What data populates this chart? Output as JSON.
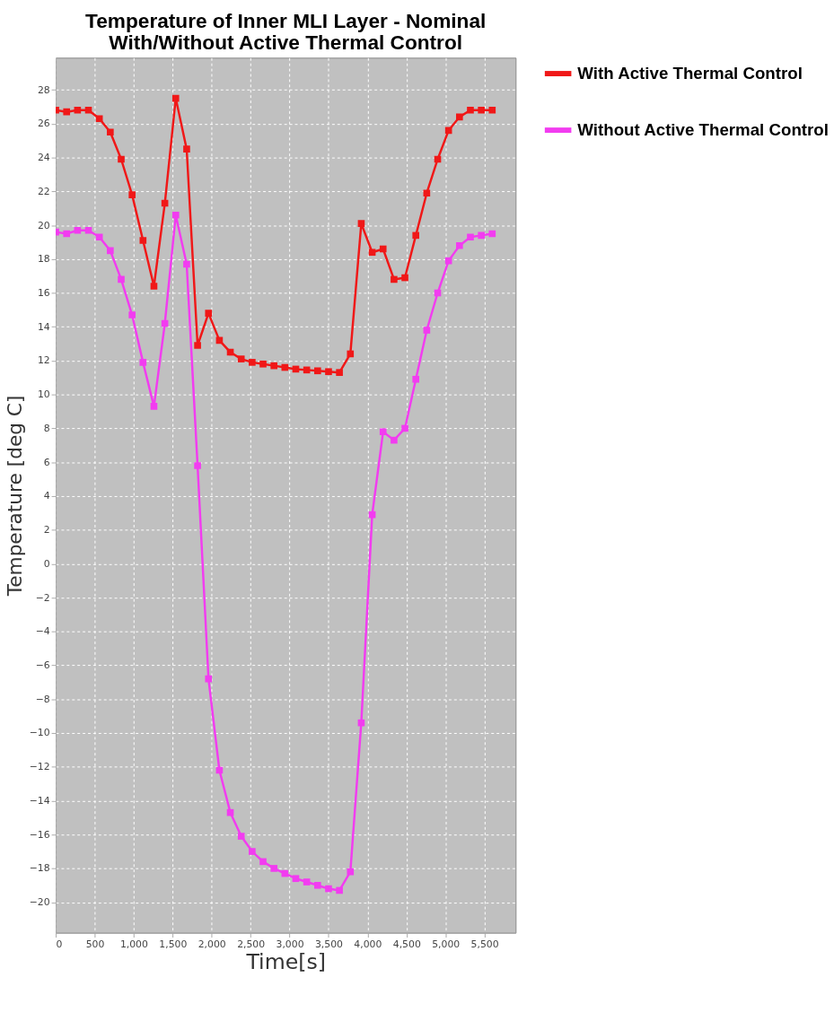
{
  "chart_data": {
    "type": "line",
    "title": "Temperature of Inner MLI Layer - Nominal\nWith/Without Active Thermal Control",
    "xlabel": "Time[s]",
    "ylabel": "Temperature [deg C]",
    "x": [
      0,
      140,
      280,
      420,
      560,
      700,
      840,
      980,
      1120,
      1260,
      1400,
      1540,
      1680,
      1820,
      1960,
      2100,
      2240,
      2380,
      2520,
      2660,
      2800,
      2940,
      3080,
      3220,
      3360,
      3500,
      3640,
      3780,
      3920,
      4060,
      4200,
      4340,
      4480,
      4620,
      4760,
      4900,
      5040,
      5180,
      5320,
      5460,
      5600
    ],
    "series": [
      {
        "name": "With Active Thermal Control",
        "color": "#f01818",
        "values": [
          26.8,
          26.7,
          26.8,
          26.8,
          26.3,
          25.5,
          23.9,
          21.8,
          19.1,
          16.4,
          21.3,
          27.5,
          24.5,
          12.9,
          14.8,
          13.2,
          12.5,
          12.1,
          11.9,
          11.8,
          11.7,
          11.6,
          11.5,
          11.45,
          11.4,
          11.35,
          11.3,
          12.4,
          20.1,
          18.4,
          18.6,
          16.8,
          16.9,
          19.4,
          21.9,
          23.9,
          25.6,
          26.4,
          26.8,
          26.8,
          26.8
        ]
      },
      {
        "name": "Without Active Thermal Control",
        "color": "#f23cf0",
        "values": [
          19.6,
          19.5,
          19.7,
          19.7,
          19.3,
          18.5,
          16.8,
          14.7,
          11.9,
          9.3,
          14.2,
          20.6,
          17.7,
          5.8,
          -6.8,
          -12.2,
          -14.7,
          -16.1,
          -17.0,
          -17.6,
          -18.0,
          -18.3,
          -18.6,
          -18.8,
          -19.0,
          -19.2,
          -19.3,
          -18.2,
          -9.4,
          2.9,
          7.8,
          7.3,
          8.0,
          10.9,
          13.8,
          16.0,
          17.9,
          18.8,
          19.3,
          19.4,
          19.5
        ]
      }
    ],
    "xlim": [
      0,
      5900
    ],
    "xticks": [
      0,
      500,
      {
        "value": 1000,
        "label": "1,000"
      },
      {
        "value": 1500,
        "label": "1,500"
      },
      {
        "value": 2000,
        "label": "2,000"
      },
      {
        "value": 2500,
        "label": "2,500"
      },
      {
        "value": 3000,
        "label": "3,000"
      },
      {
        "value": 3500,
        "label": "3,500"
      },
      {
        "value": 4000,
        "label": "4,000"
      },
      {
        "value": 4500,
        "label": "4,500"
      },
      {
        "value": 5000,
        "label": "5,000"
      },
      {
        "value": 5500,
        "label": "5,500"
      }
    ],
    "ylim": [
      -21.8,
      29.9
    ],
    "yticks": [
      -20,
      -18,
      -16,
      -14,
      -12,
      -10,
      -8,
      -6,
      -4,
      -2,
      0,
      2,
      4,
      6,
      8,
      10,
      12,
      14,
      16,
      18,
      20,
      22,
      24,
      26,
      28
    ],
    "grid": true,
    "legend": "top right",
    "marker": "square",
    "line_style": "solid"
  }
}
